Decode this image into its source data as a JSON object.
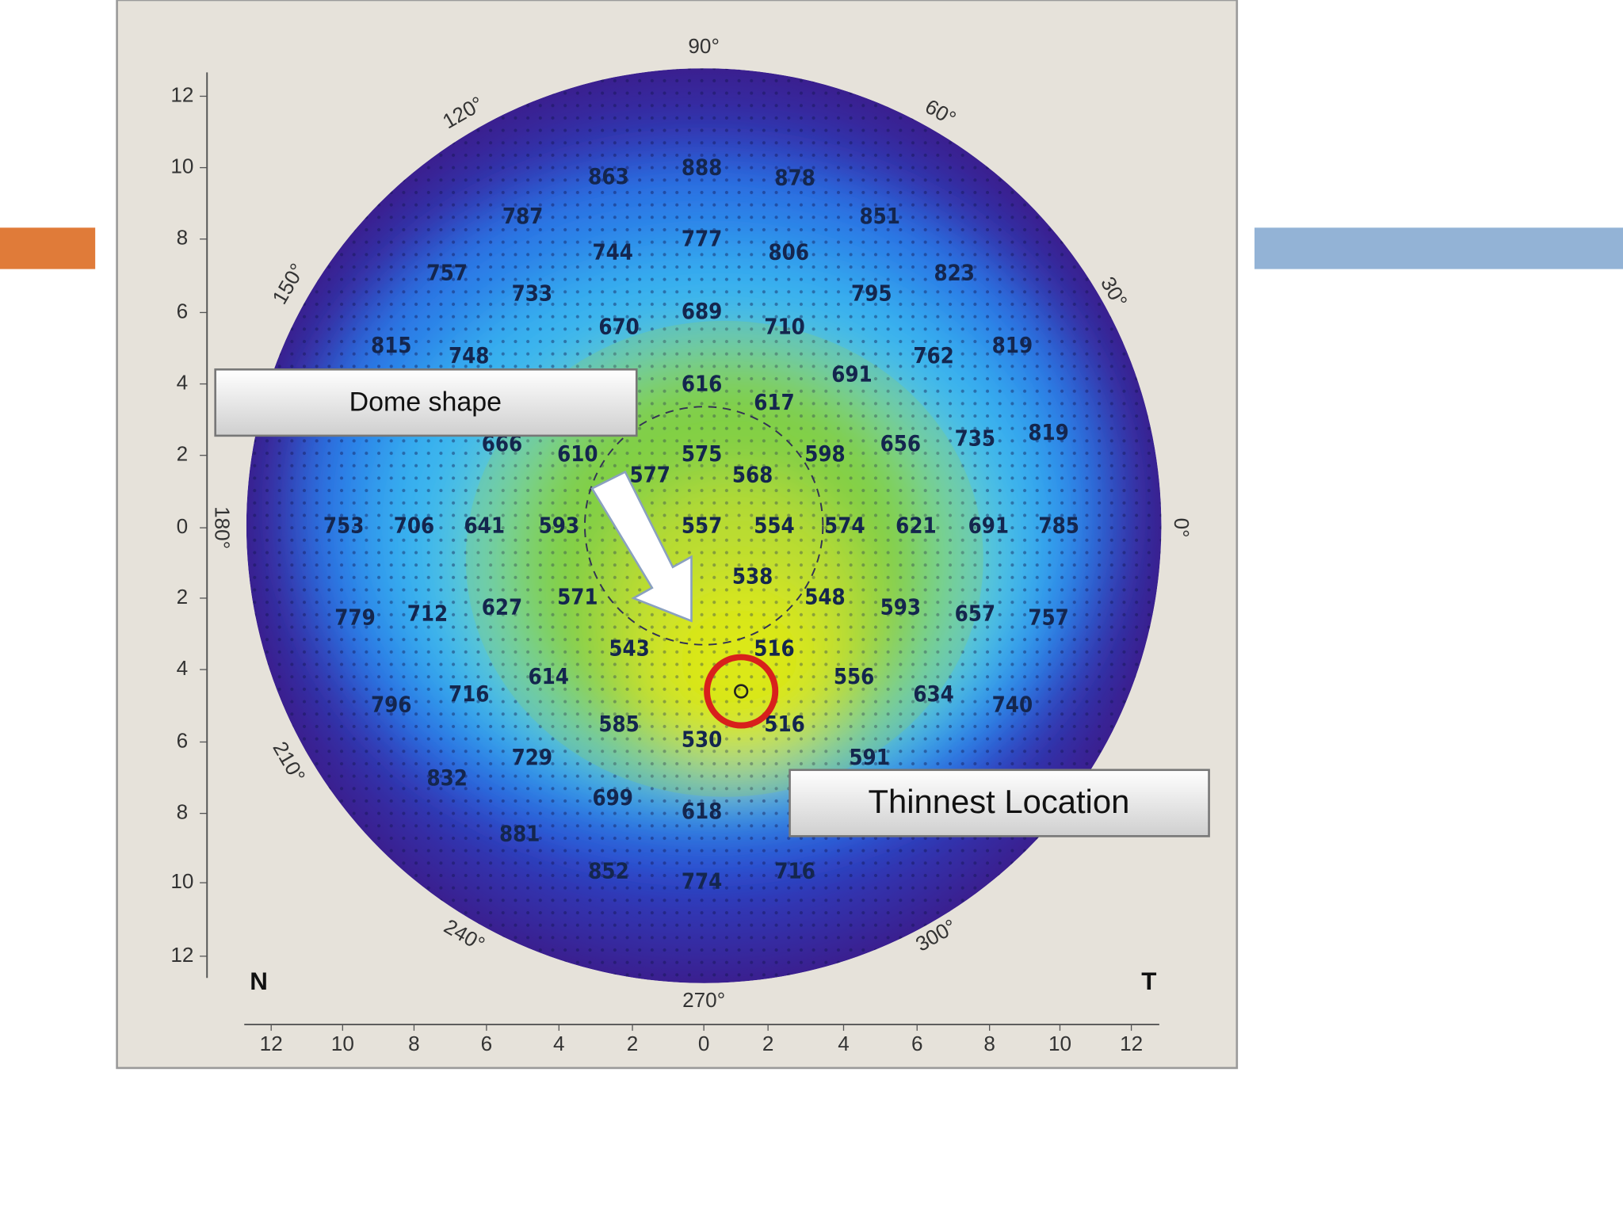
{
  "map": {
    "angles": [
      "90°",
      "60°",
      "30°",
      "0°",
      "300°",
      "270°",
      "240°",
      "210°",
      "180°",
      "150°",
      "120°"
    ],
    "y_ticks": [
      "12",
      "10",
      "8",
      "6",
      "4",
      "2",
      "0",
      "2",
      "4",
      "6",
      "8",
      "10",
      "12"
    ],
    "x_ticks": [
      "12",
      "10",
      "8",
      "6",
      "4",
      "2",
      "0",
      "2",
      "4",
      "6",
      "8",
      "10",
      "12"
    ],
    "corners": {
      "nasal": "N",
      "temporal": "T"
    },
    "readings": [
      863,
      888,
      878,
      787,
      851,
      757,
      744,
      777,
      806,
      823,
      733,
      795,
      670,
      689,
      710,
      815,
      748,
      762,
      819,
      691,
      616,
      617,
      666,
      610,
      575,
      598,
      656,
      735,
      819,
      577,
      568,
      753,
      706,
      641,
      593,
      557,
      554,
      574,
      621,
      691,
      785,
      538,
      571,
      548,
      779,
      712,
      627,
      593,
      657,
      757,
      543,
      516,
      614,
      556,
      796,
      716,
      634,
      740,
      585,
      516,
      530,
      729,
      591,
      832,
      699,
      618,
      881,
      852,
      774,
      716
    ],
    "callouts": {
      "dome": "Dome shape",
      "thinnest": "Thinnest Location"
    }
  }
}
